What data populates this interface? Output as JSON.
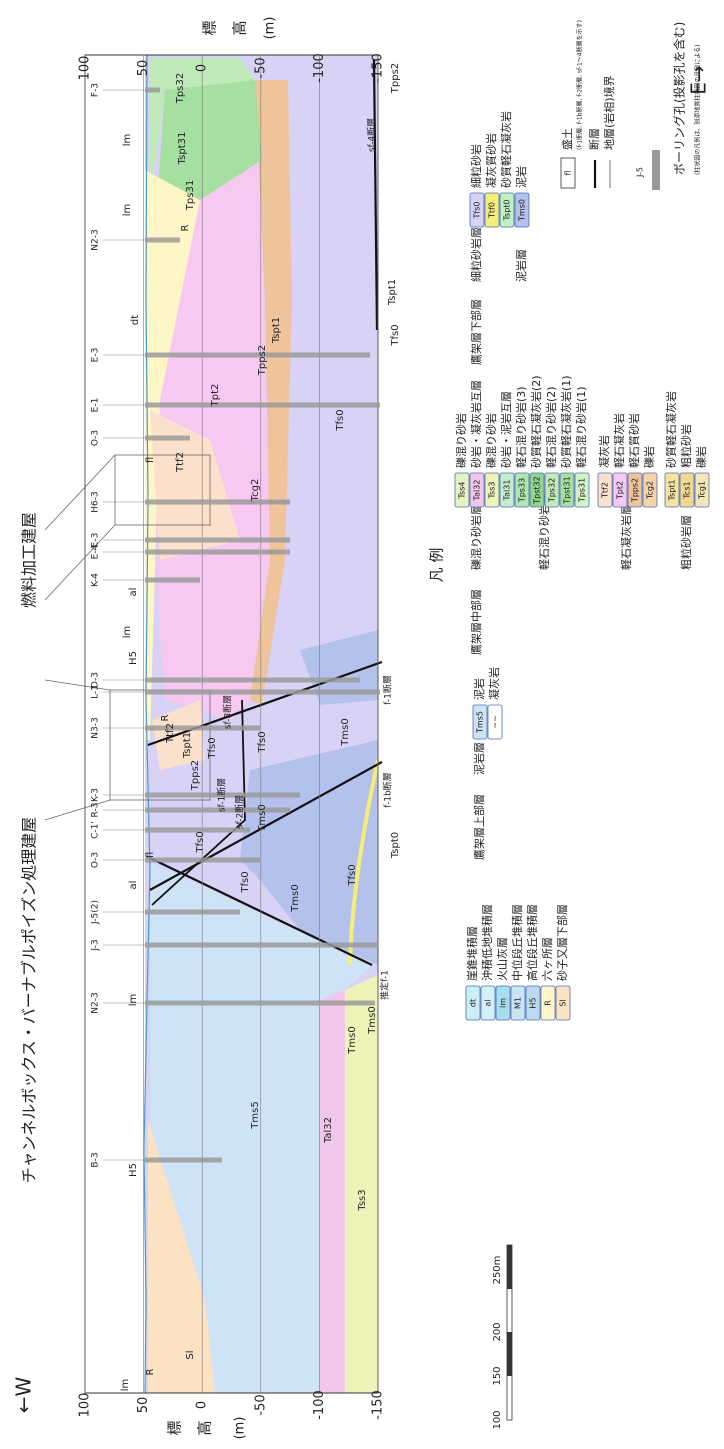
{
  "header": {
    "title_cb": "チャンネルボックス・バーナブルポイズン処理建屋",
    "title_fuel": "燃料加工建屋",
    "east": "E→",
    "west": "←W"
  },
  "axis": {
    "label": [
      "標",
      "高"
    ],
    "unit": "(m)",
    "range": [
      -150,
      100
    ],
    "ticks": [
      100,
      50,
      0,
      -50,
      -100,
      -150
    ]
  },
  "section": {
    "units": [
      "lm",
      "R",
      "Sl",
      "H5",
      "Tms5",
      "Tal32",
      "Tss3",
      "lm",
      "al",
      "fl",
      "Tfs0",
      "Tfs0",
      "Tms0",
      "Tms0",
      "Tms0",
      "Tfs0",
      "Tspt0",
      "Tms0",
      "Tpps2",
      "Tspt1",
      "Tfs0",
      "Ttf2",
      "Tfs0",
      "Tms0",
      "H5",
      "lm",
      "R",
      "al",
      "fl",
      "Ttf2",
      "Tpt2",
      "Tcg2",
      "Tpps2",
      "Tspt1",
      "Tfs0",
      "dt",
      "lm",
      "R",
      "Tps31",
      "Tspt31",
      "lm",
      "Tps32",
      "Tfs0",
      "Tspt1",
      "Tpps2"
    ],
    "faults": [
      "f-1断層",
      "f-1b断層",
      "sf-1断層",
      "sf-2断層",
      "sf-3断層",
      "sf-4断層",
      "推定f-1"
    ],
    "boreholes": [
      "B-3",
      "N2-3",
      "J-3",
      "J-5(2)",
      "O-3",
      "C-1'",
      "R-3",
      "K-3",
      "N3-3",
      "L-1",
      "D-3",
      "K-4",
      "E-4",
      "E-3",
      "H6-3",
      "O-3",
      "E-1",
      "E-3",
      "N2-3",
      "F-3"
    ]
  },
  "scale_bar": {
    "ticks": [
      "100",
      "150",
      "200",
      "250m"
    ]
  },
  "legend": {
    "title": "凡 例",
    "quaternary": [
      {
        "code": "dt",
        "name": "崖錐堆積層",
        "color": "#cdeef5"
      },
      {
        "code": "al",
        "name": "沖積低地堆積層",
        "color": "#d6f0fa"
      },
      {
        "code": "lm",
        "name": "火山灰層",
        "color": "#a8dcef"
      },
      {
        "code": "M1",
        "name": "中位段丘堆積層",
        "color": "#c9e4f5"
      },
      {
        "code": "H5",
        "name": "高位段丘堆積層",
        "color": "#bcd9f0"
      },
      {
        "code": "R",
        "name": "六ヶ所層",
        "color": "#fff6c8"
      },
      {
        "code": "Sl",
        "name": "砂子又層下部層",
        "color": "#fbe2c2"
      }
    ],
    "upper": {
      "name": "鷹架層上部層",
      "group": "泥岩層",
      "items": [
        {
          "code": "Tms5",
          "name": "泥岩",
          "color": "#cfe3f7"
        },
        {
          "code": "~~",
          "name": "凝灰岩",
          "color": "#ffffff"
        }
      ]
    },
    "middle": {
      "name": "鷹架層中部層",
      "groups": [
        {
          "name": "礫混り砂岩層",
          "items": [
            {
              "code": "Tss4",
              "name": "礫混り砂岩",
              "color": "#e8f2c0"
            },
            {
              "code": "Tal32",
              "name": "砂岩・凝灰岩互層",
              "color": "#f3c6ec"
            },
            {
              "code": "Tss3",
              "name": "礫混り砂岩",
              "color": "#eef4b8"
            }
          ]
        },
        {
          "name": "軽石混り砂岩層",
          "items": [
            {
              "code": "Tal31",
              "name": "砂岩・泥岩互層",
              "color": "#c4ecd0"
            },
            {
              "code": "Tps33",
              "name": "軽石混り砂岩(3)",
              "color": "#b0e6b0"
            },
            {
              "code": "Tpst32",
              "name": "砂質軽石凝灰岩(2)",
              "color": "#8ed58e"
            },
            {
              "code": "Tps32",
              "name": "軽石混り砂岩(2)",
              "color": "#c0ebb8"
            },
            {
              "code": "Tpst31",
              "name": "砂質軽石凝灰岩(1)",
              "color": "#a6e0a0"
            },
            {
              "code": "Tps31",
              "name": "軽石混り砂岩(1)",
              "color": "#d4f2c8"
            }
          ]
        },
        {
          "name": "軽石凝灰岩層",
          "items": [
            {
              "code": "Ttf2",
              "name": "凝灰岩",
              "color": "#fbe1cc"
            },
            {
              "code": "Tpt2",
              "name": "軽石凝灰岩",
              "color": "#f6c8f2"
            },
            {
              "code": "Tpps2",
              "name": "軽石質砂岩",
              "color": "#f0c49a"
            },
            {
              "code": "Tcg2",
              "name": "礫岩",
              "color": "#f7d3a8"
            }
          ]
        },
        {
          "name": "粗粒砂岩層",
          "items": [
            {
              "code": "Tspt1",
              "name": "砂質軽石凝灰岩",
              "color": "#f5e3a0"
            },
            {
              "code": "Tcs1",
              "name": "粗粒砂岩",
              "color": "#f0d890"
            },
            {
              "code": "Tcg1",
              "name": "礫岩",
              "color": "#f5e6b8"
            }
          ]
        }
      ]
    },
    "lower": {
      "name": "鷹架層下部層",
      "groups": [
        {
          "name": "細粒砂岩層",
          "items": [
            {
              "code": "Tfs0",
              "name": "細粒砂岩",
              "color": "#d7d2f6"
            },
            {
              "code": "Ttf0",
              "name": "凝灰質砂岩",
              "color": "#f5ef7a"
            },
            {
              "code": "Tspt0",
              "name": "砂質軽石凝灰岩",
              "color": "#c2f0c0"
            }
          ]
        },
        {
          "name": "泥岩層",
          "items": [
            {
              "code": "Tms0",
              "name": "泥岩",
              "color": "#b3c1ec"
            }
          ]
        }
      ]
    },
    "symbols": {
      "fill_code": "fl",
      "fill": "盛土",
      "note": "(f-1断層, f-1b断層, f-2断層, sf-1〜4断層を示す)",
      "fault": "断層",
      "boundary": "地層(岩相)境界",
      "borehole_code": "J-5",
      "borehole": "ボーリング孔(投影孔を含む)",
      "borehole_note": "(柱状図の凡例は、別添地質柱状図の凡例による)"
    }
  }
}
